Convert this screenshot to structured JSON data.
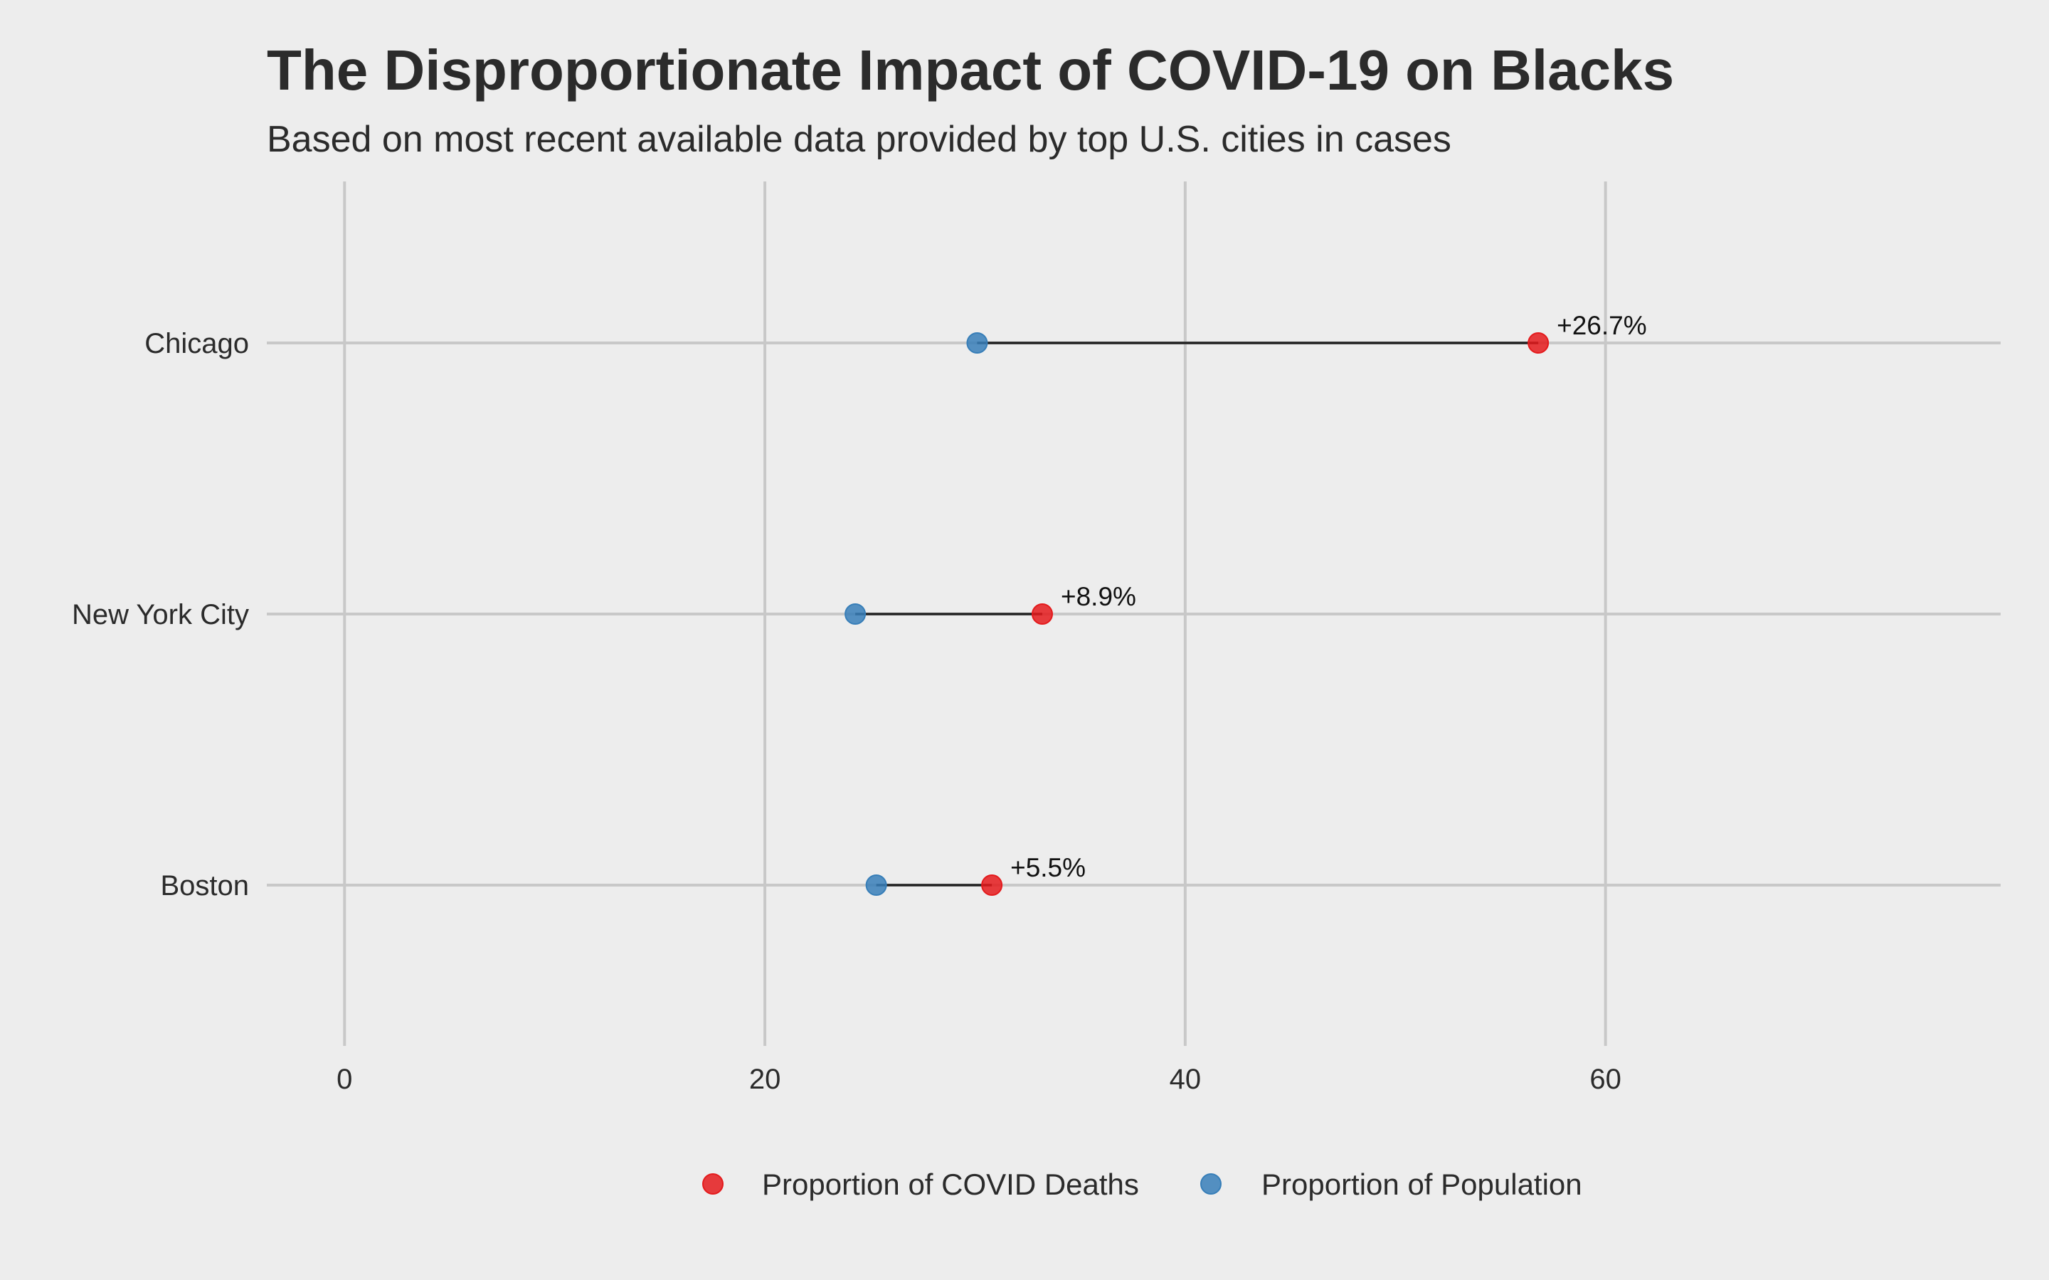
{
  "chart_data": {
    "type": "dumbbell",
    "title": "The Disproportionate Impact of COVID-19 on Blacks",
    "subtitle": "Based on most recent available data provided by top U.S. cities in cases",
    "xlabel": "",
    "ylabel": "",
    "xlim": [
      -3.7,
      78.8
    ],
    "x_ticks": [
      0,
      20,
      40,
      60
    ],
    "x_tick_labels": [
      "0",
      "20",
      "40",
      "60"
    ],
    "categories": [
      "Chicago",
      "New York City",
      "Boston"
    ],
    "series": [
      {
        "name": "Proportion of COVID Deaths",
        "color": "#e41a1c",
        "values": [
          56.8,
          33.2,
          30.8
        ]
      },
      {
        "name": "Proportion of Population",
        "color": "#377eb8",
        "values": [
          30.1,
          24.3,
          25.3
        ]
      }
    ],
    "labels": [
      "+26.7%",
      "+8.9%",
      "+5.5%"
    ],
    "grid": true,
    "legend_position": "bottom"
  }
}
